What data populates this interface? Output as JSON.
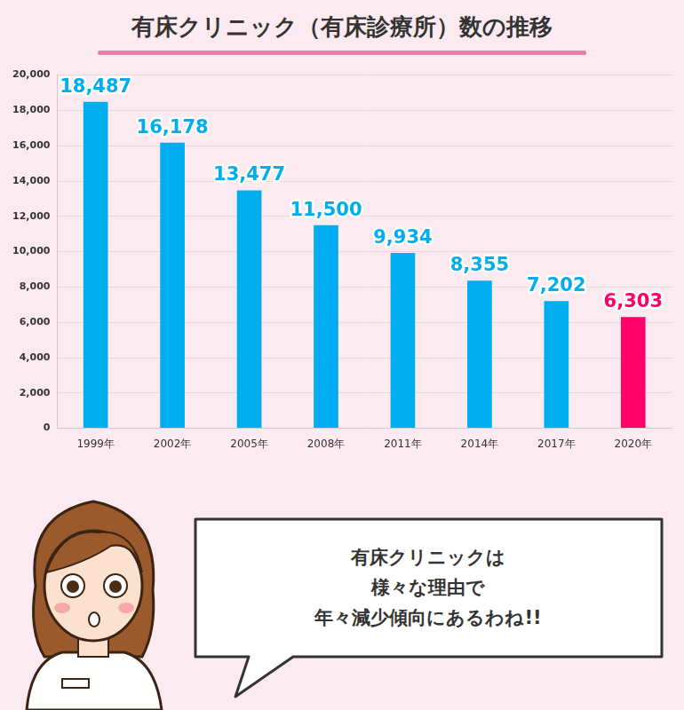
{
  "chart_data": {
    "type": "bar",
    "title": "有床クリニック（有床診療所）数の推移",
    "categories": [
      "1999年",
      "2002年",
      "2005年",
      "2008年",
      "2011年",
      "2014年",
      "2017年",
      "2020年"
    ],
    "values": [
      18487,
      16178,
      13477,
      11500,
      9934,
      8355,
      7202,
      6303
    ],
    "value_labels": [
      "18,487",
      "16,178",
      "13,477",
      "11,500",
      "9,934",
      "8,355",
      "7,202",
      "6,303"
    ],
    "colors": [
      "#00aeef",
      "#00aeef",
      "#00aeef",
      "#00aeef",
      "#00aeef",
      "#00aeef",
      "#00aeef",
      "#ff0066"
    ],
    "ylim": [
      0,
      20000
    ],
    "yticks": [
      0,
      {
        "value": 2000,
        "label": "2,000"
      },
      {
        "value": 4000,
        "label": "4,000"
      },
      {
        "value": 6000,
        "label": "6,000"
      },
      {
        "value": 8000,
        "label": "8,000"
      },
      {
        "value": 10000,
        "label": "10,000"
      },
      {
        "value": 12000,
        "label": "12,000"
      },
      {
        "value": 14000,
        "label": "14,000"
      },
      {
        "value": 16000,
        "label": "16,000"
      },
      {
        "value": 18000,
        "label": "18,000"
      },
      {
        "value": 20000,
        "label": "20,000"
      }
    ],
    "grid": true,
    "data_labels": true,
    "annotations": [
      "有床クリニックは",
      "様々な理由で",
      "年々減少傾向にあるわね!!"
    ]
  }
}
